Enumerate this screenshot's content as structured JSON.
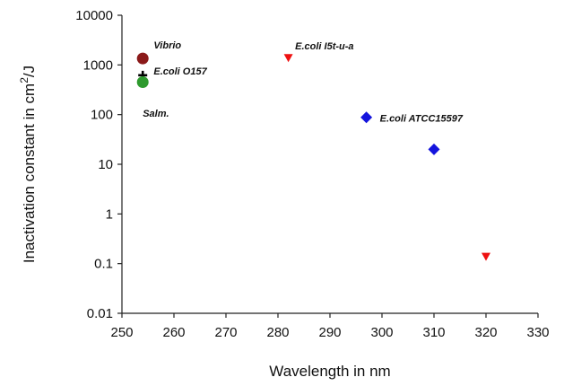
{
  "chart_data": {
    "type": "scatter",
    "title": "",
    "xlabel": "Wavelength in nm",
    "ylabel_main": "Inactivation constant in cm",
    "ylabel_sup": "2",
    "ylabel_tail": "/J",
    "xlim": [
      250,
      330
    ],
    "ylim": [
      0.01,
      10000
    ],
    "yscale": "log",
    "grid": false,
    "legend": "none",
    "x_ticks": [
      "250",
      "260",
      "270",
      "280",
      "290",
      "300",
      "310",
      "320",
      "330"
    ],
    "y_ticks": [
      "0.01",
      "0.1",
      "1",
      "10",
      "100",
      "1000",
      "10000"
    ],
    "series": [
      {
        "marker": "circle",
        "color": "#8b1a1a",
        "points": [
          {
            "x": 254,
            "y": 1350
          }
        ]
      },
      {
        "marker": "plus",
        "color": "#000000",
        "points": [
          {
            "x": 254,
            "y": 620
          }
        ]
      },
      {
        "marker": "circle",
        "color": "#2e9a2e",
        "points": [
          {
            "x": 254,
            "y": 450
          }
        ]
      },
      {
        "marker": "triangle-down",
        "color": "#ee1111",
        "points": [
          {
            "x": 282,
            "y": 1400
          },
          {
            "x": 320,
            "y": 0.14
          }
        ]
      },
      {
        "marker": "diamond",
        "color": "#1414dd",
        "points": [
          {
            "x": 297,
            "y": 88
          },
          {
            "x": 310,
            "y": 20
          }
        ]
      }
    ],
    "annotations": [
      {
        "text": "Vibrio",
        "x": 256.1,
        "y": 2150
      },
      {
        "text": "E.coli O157",
        "x": 256.1,
        "y": 640
      },
      {
        "text": "Salm.",
        "x": 254,
        "y": 90
      },
      {
        "text": "E.coli I5t-u-a",
        "x": 283.3,
        "y": 2050
      },
      {
        "text": "E.coli ATCC15597",
        "x": 299.6,
        "y": 72
      }
    ]
  }
}
